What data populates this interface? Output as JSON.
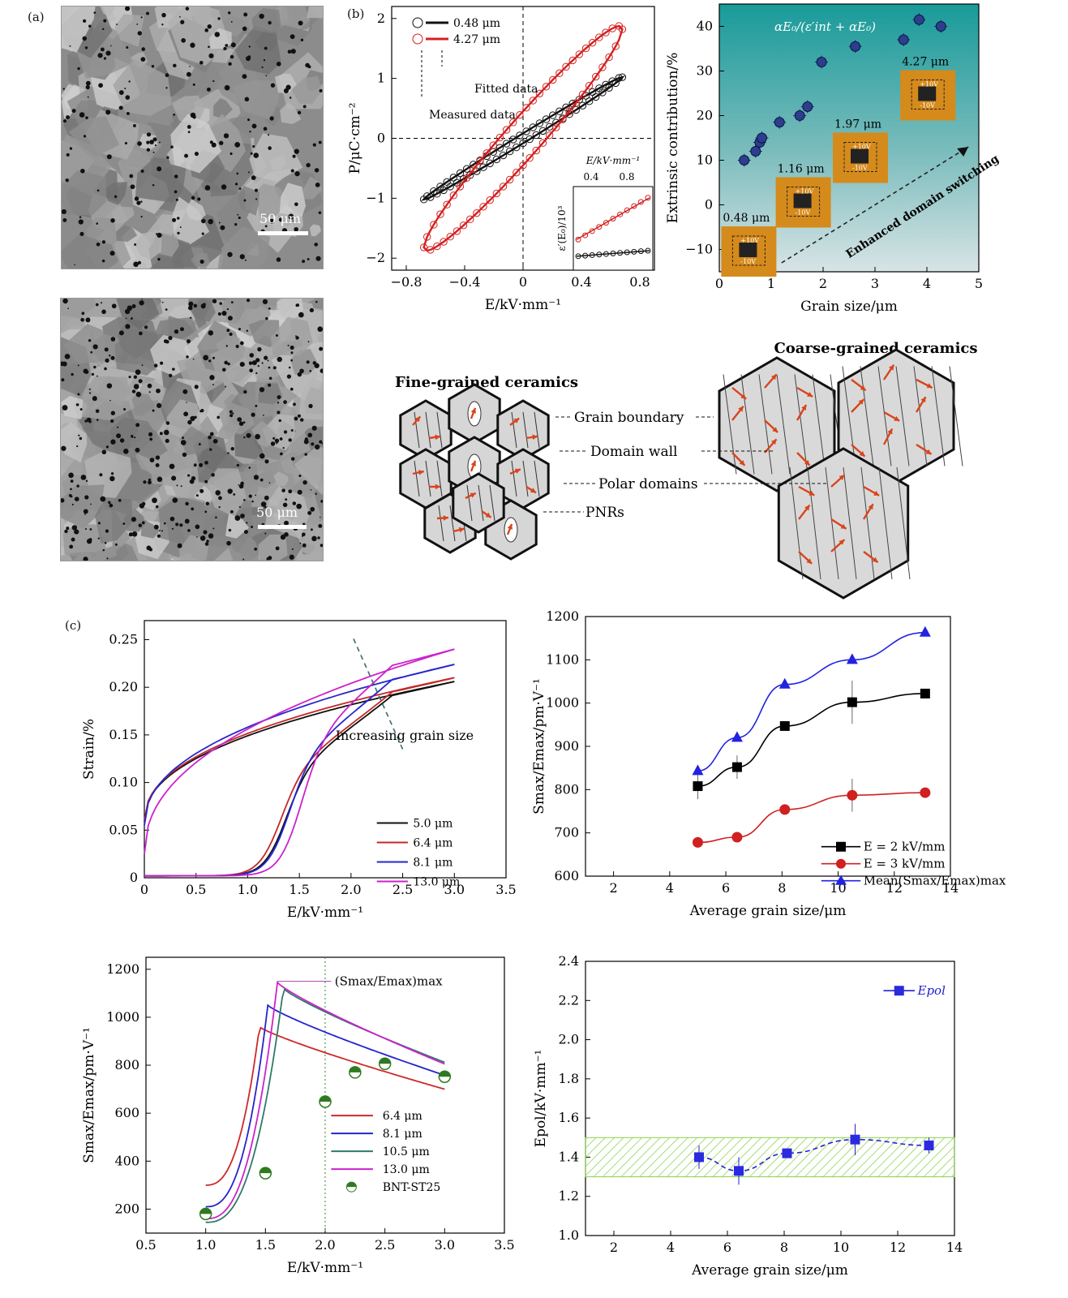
{
  "labels": {
    "a": "(a)",
    "b": "(b)",
    "c": "(c)"
  },
  "micrographs": [
    {
      "scalebar": "50 μm",
      "tone": "#8c8c8c"
    },
    {
      "scalebar": "50 μm",
      "tone": "#a4a4a4"
    }
  ],
  "hysteresis": {
    "xlabel": "E/kV·mm⁻¹",
    "ylabel": "P/μC·cm⁻²",
    "legend": [
      "0.48 μm",
      "4.27 μm"
    ],
    "annot_fitted": "Fitted data",
    "annot_measured": "Measured data",
    "colors": {
      "fine": "#111111",
      "coarse": "#d42020"
    },
    "chart_data": {
      "type": "line",
      "xlim": [
        -0.9,
        0.9
      ],
      "ylim": [
        -2.2,
        2.2
      ],
      "xticks": [
        "−0.8",
        "−0.4",
        "0",
        "0.4",
        "0.8"
      ],
      "yticks": [
        "−2",
        "−1",
        "0",
        "1",
        "2"
      ],
      "series": [
        {
          "name": "0.48 μm",
          "emax": 0.68,
          "pmax": 1.02,
          "width": 0.18
        },
        {
          "name": "4.27 μm",
          "emax": 0.68,
          "pmax": 1.82,
          "width": 0.55
        }
      ]
    },
    "inset": {
      "xlabel": "E/kV·mm⁻¹",
      "ylabel": "ε′(E₀)/10³",
      "xticks": [
        "0.4",
        "0.8"
      ],
      "chart_data": {
        "type": "line",
        "series": [
          {
            "name": "0.48 μm",
            "start": 1.5,
            "end": 1.7
          },
          {
            "name": "4.27 μm",
            "start": 2.1,
            "end": 3.6
          }
        ]
      }
    }
  },
  "extrinsic": {
    "formula": "αE₀/(ε′int + αE₀)",
    "xlabel": "Grain size/μm",
    "ylabel": "Extrinsic contribution/%",
    "arrow_label": "Enhanced domain switching",
    "inset_labels": [
      "0.48 μm",
      "1.16 μm",
      "1.97 μm",
      "4.27 μm"
    ],
    "pfm_plus": "+10V",
    "pfm_minus": "-10V",
    "chart_data": {
      "type": "scatter",
      "xlim": [
        0,
        5
      ],
      "ylim": [
        -15,
        45
      ],
      "xticks": [
        "0",
        "1",
        "2",
        "3",
        "4",
        "5"
      ],
      "yticks": [
        "−10",
        "0",
        "10",
        "20",
        "30",
        "40"
      ],
      "x": [
        0.48,
        0.7,
        0.78,
        0.82,
        1.16,
        1.55,
        1.7,
        1.97,
        2.62,
        3.55,
        3.85,
        4.27
      ],
      "y": [
        10,
        12,
        14,
        15,
        18.5,
        20,
        22,
        32,
        35.5,
        37,
        41.5,
        40
      ]
    }
  },
  "schematic": {
    "fine_title": "Fine-grained ceramics",
    "coarse_title": "Coarse-grained ceramics",
    "labels": [
      "Grain boundary",
      "Domain wall",
      "Polar domains",
      "PNRs"
    ]
  },
  "strain": {
    "xlabel": "E/kV·mm⁻¹",
    "ylabel": "Strain/%",
    "annot": "Increasing grain size",
    "legend": [
      "5.0 μm",
      "6.4 μm",
      "8.1 μm",
      "13.0 μm"
    ],
    "colors": [
      "#111111",
      "#c42828",
      "#2626d0",
      "#cc22cc"
    ],
    "chart_data": {
      "type": "line",
      "xlim": [
        0,
        3.5
      ],
      "ylim": [
        0,
        0.27
      ],
      "xticks": [
        "0",
        "0.5",
        "1.0",
        "1.5",
        "2.0",
        "2.5",
        "3.0",
        "3.5"
      ],
      "yticks": [
        "0",
        "0.05",
        "0.10",
        "0.15",
        "0.20",
        "0.25"
      ],
      "series": [
        {
          "name": "5.0 μm",
          "top": 0.206,
          "start": 0.06,
          "sw": 1.35
        },
        {
          "name": "6.4 μm",
          "top": 0.21,
          "start": 0.06,
          "sw": 1.3
        },
        {
          "name": "8.1 μm",
          "top": 0.224,
          "start": 0.055,
          "sw": 1.38
        },
        {
          "name": "13.0 μm",
          "top": 0.24,
          "start": 0.025,
          "sw": 1.5
        }
      ]
    }
  },
  "smax_grain": {
    "xlabel": "Average grain size/μm",
    "ylabel": "Smax/Emax/pm·V⁻¹",
    "legend": [
      "E = 2 kV/mm",
      "E = 3 kV/mm",
      "Mean(Smax/Emax)max"
    ],
    "colors": [
      "#000000",
      "#d02020",
      "#2222e0"
    ],
    "chart_data": {
      "type": "line",
      "xlim": [
        1,
        14
      ],
      "ylim": [
        600,
        1200
      ],
      "xticks": [
        "2",
        "4",
        "6",
        "8",
        "10",
        "12",
        "14"
      ],
      "yticks": [
        "600",
        "700",
        "800",
        "900",
        "1000",
        "1100",
        "1200"
      ],
      "x": [
        5.0,
        6.4,
        8.1,
        10.5,
        13.1
      ],
      "series": [
        {
          "name": "E = 2 kV/mm",
          "values": [
            808,
            852,
            947,
            1002,
            1022
          ],
          "err": [
            30,
            27,
            0,
            50,
            0
          ]
        },
        {
          "name": "E = 3 kV/mm",
          "values": [
            678,
            690,
            754,
            787,
            793
          ],
          "err": [
            10,
            10,
            0,
            38,
            0
          ]
        },
        {
          "name": "Mean(Smax/Emax)max",
          "values": [
            843,
            920,
            1043,
            1100,
            1163
          ],
          "err": [
            0,
            0,
            0,
            0,
            0
          ]
        }
      ]
    }
  },
  "smax_field": {
    "xlabel": "E/kV·mm⁻¹",
    "ylabel": "Smax/Emax/pm·V⁻¹",
    "annot": "(Smax/Emax)max",
    "legend": [
      "6.4 μm",
      "8.1 μm",
      "10.5 μm",
      "13.0 μm",
      "BNT-ST25"
    ],
    "colors": [
      "#cc2a2a",
      "#2424cc",
      "#2e7a6a",
      "#cc22cc",
      "#2f7a1f"
    ],
    "chart_data": {
      "type": "line",
      "xlim": [
        0.5,
        3.5
      ],
      "ylim": [
        100,
        1250
      ],
      "xticks": [
        "0.5",
        "1.0",
        "1.5",
        "2.0",
        "2.5",
        "3.0",
        "3.5"
      ],
      "yticks": [
        "200",
        "400",
        "600",
        "800",
        "1000",
        "1200"
      ],
      "series": [
        {
          "name": "6.4 μm",
          "peakx": 1.45,
          "peak": 960,
          "end": 700,
          "startv": 300
        },
        {
          "name": "8.1 μm",
          "peakx": 1.52,
          "peak": 1050,
          "end": 758,
          "startv": 210
        },
        {
          "name": "10.5 μm",
          "peakx": 1.65,
          "peak": 1120,
          "end": 812,
          "startv": 145
        },
        {
          "name": "13.0 μm",
          "peakx": 1.6,
          "peak": 1145,
          "end": 805,
          "startv": 160
        }
      ],
      "points": {
        "name": "BNT-ST25",
        "x": [
          1.0,
          1.5,
          2.0,
          2.25,
          2.5,
          3.0
        ],
        "y": [
          180,
          350,
          648,
          770,
          806,
          752
        ]
      }
    }
  },
  "epol": {
    "xlabel": "Average grain size/μm",
    "ylabel": "Epol/kV·mm⁻¹",
    "legend": "Epol",
    "chart_data": {
      "type": "line",
      "xlim": [
        1,
        14
      ],
      "ylim": [
        1.0,
        2.4
      ],
      "xticks": [
        "2",
        "4",
        "6",
        "8",
        "10",
        "12",
        "14"
      ],
      "yticks": [
        "1.0",
        "1.2",
        "1.4",
        "1.6",
        "1.8",
        "2.0",
        "2.2",
        "2.4"
      ],
      "x": [
        5.0,
        6.4,
        8.1,
        10.5,
        13.1
      ],
      "y": [
        1.4,
        1.33,
        1.42,
        1.49,
        1.46
      ],
      "err": [
        0.06,
        0.07,
        0.02,
        0.08,
        0.04
      ],
      "band": [
        1.3,
        1.5
      ]
    }
  }
}
